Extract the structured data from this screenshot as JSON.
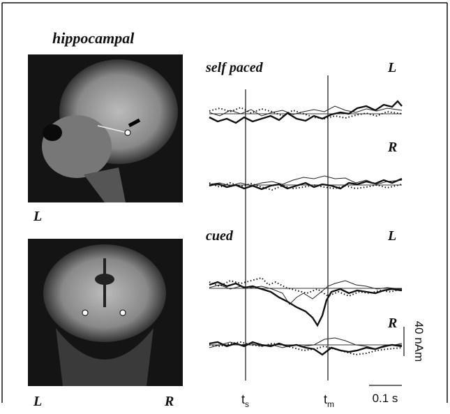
{
  "figure": {
    "title": "hippocampal",
    "panels": [
      {
        "label": "self paced",
        "traces": [
          {
            "hemisphere": "L"
          },
          {
            "hemisphere": "R"
          }
        ]
      },
      {
        "label": "cued",
        "traces": [
          {
            "hemisphere": "L"
          },
          {
            "hemisphere": "R"
          }
        ]
      }
    ],
    "images": [
      {
        "orientation_labels": [
          "L"
        ]
      },
      {
        "orientation_labels": [
          "L",
          "R"
        ]
      }
    ],
    "time_markers": [
      {
        "symbol": "t",
        "subscript": "s"
      },
      {
        "symbol": "t",
        "subscript": "m"
      }
    ],
    "scale_bars": {
      "time": "0.1 s",
      "amplitude": "40 nAm"
    }
  }
}
